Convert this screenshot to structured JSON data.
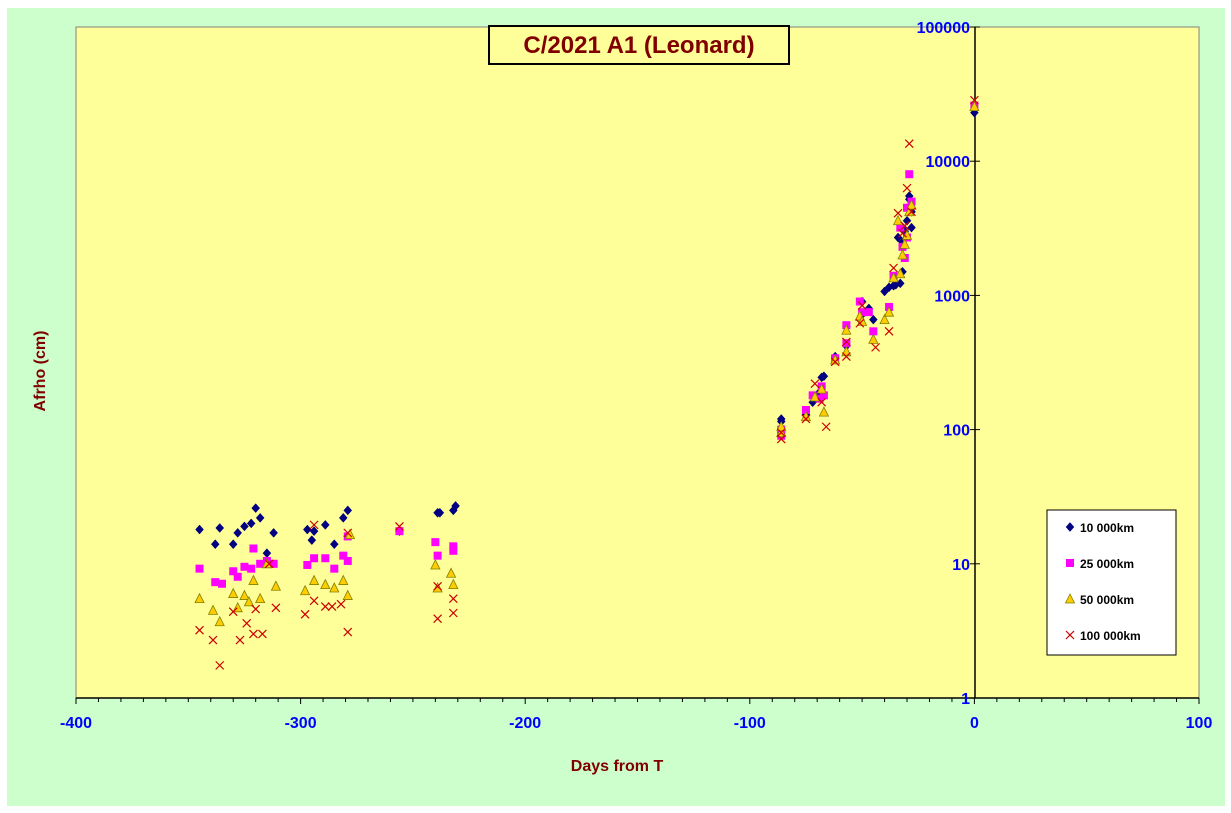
{
  "chart_data": {
    "type": "scatter",
    "title": "C/2021 A1 (Leonard)",
    "xlabel": "Days from T",
    "ylabel": "Afrho (cm)",
    "xlim": [
      -400,
      100
    ],
    "ylim": [
      1,
      100000
    ],
    "y_scale": "log",
    "x_ticks": [
      "-400",
      "-300",
      "-200",
      "-100",
      "0",
      "100"
    ],
    "y_ticks": [
      "1",
      "10",
      "100",
      "1000",
      "10000",
      "100000"
    ],
    "grid": false,
    "legend_position": "right",
    "colors": {
      "frame_bg": "#ccffcc",
      "plot_bg": "#ffff99",
      "tick_labels": "#0000ff",
      "axis_labels": "#800000",
      "title": "#800000"
    },
    "series": [
      {
        "name": "10 000km",
        "marker": "diamond",
        "color": "#000080",
        "points": [
          [
            -345,
            18
          ],
          [
            -338,
            14
          ],
          [
            -336,
            18.5
          ],
          [
            -330,
            14
          ],
          [
            -328,
            17
          ],
          [
            -325,
            19
          ],
          [
            -322,
            20
          ],
          [
            -320,
            26
          ],
          [
            -318,
            22
          ],
          [
            -315,
            12
          ],
          [
            -312,
            17
          ],
          [
            -297,
            18
          ],
          [
            -295,
            15
          ],
          [
            -294,
            17.5
          ],
          [
            -289,
            19.5
          ],
          [
            -285,
            14
          ],
          [
            -281,
            22
          ],
          [
            -279,
            25
          ],
          [
            -256,
            17.5
          ],
          [
            -239,
            24
          ],
          [
            -238,
            24
          ],
          [
            -232,
            25
          ],
          [
            -231,
            27
          ],
          [
            -86,
            115
          ],
          [
            -86,
            120
          ],
          [
            -86,
            95
          ],
          [
            -75,
            130
          ],
          [
            -72,
            160
          ],
          [
            -69,
            190
          ],
          [
            -68,
            245
          ],
          [
            -67,
            250
          ],
          [
            -62,
            350
          ],
          [
            -57,
            420
          ],
          [
            -57,
            590
          ],
          [
            -50,
            720
          ],
          [
            -50,
            900
          ],
          [
            -47,
            800
          ],
          [
            -45,
            660
          ],
          [
            -40,
            1070
          ],
          [
            -38,
            1150
          ],
          [
            -36,
            1180
          ],
          [
            -35,
            1200
          ],
          [
            -34,
            2700
          ],
          [
            -33,
            1230
          ],
          [
            -32,
            1500
          ],
          [
            -32,
            2500
          ],
          [
            -31,
            3000
          ],
          [
            -30,
            3600
          ],
          [
            -29,
            5200
          ],
          [
            -29,
            5500
          ],
          [
            -28,
            3200
          ],
          [
            -28,
            4200
          ],
          [
            0,
            23000
          ]
        ]
      },
      {
        "name": "25 000km",
        "marker": "square",
        "color": "#ff00ff",
        "points": [
          [
            -345,
            9.2
          ],
          [
            -338,
            7.3
          ],
          [
            -335,
            7.1
          ],
          [
            -330,
            8.8
          ],
          [
            -328,
            8.0
          ],
          [
            -325,
            9.5
          ],
          [
            -322,
            9.2
          ],
          [
            -321,
            13
          ],
          [
            -318,
            10
          ],
          [
            -315,
            10.5
          ],
          [
            -312,
            10
          ],
          [
            -297,
            9.8
          ],
          [
            -294,
            11
          ],
          [
            -289,
            11
          ],
          [
            -285,
            9.2
          ],
          [
            -281,
            11.5
          ],
          [
            -279,
            10.5
          ],
          [
            -279,
            16
          ],
          [
            -256,
            17.5
          ],
          [
            -240,
            14.5
          ],
          [
            -239,
            11.5
          ],
          [
            -232,
            12.5
          ],
          [
            -232,
            13.5
          ],
          [
            -86,
            100
          ],
          [
            -86,
            90
          ],
          [
            -75,
            140
          ],
          [
            -72,
            180
          ],
          [
            -69,
            170
          ],
          [
            -68,
            210
          ],
          [
            -67,
            180
          ],
          [
            -62,
            340
          ],
          [
            -57,
            440
          ],
          [
            -57,
            600
          ],
          [
            -51,
            900
          ],
          [
            -50,
            750
          ],
          [
            -47,
            750
          ],
          [
            -45,
            540
          ],
          [
            -38,
            820
          ],
          [
            -36,
            1400
          ],
          [
            -33,
            3200
          ],
          [
            -32,
            2300
          ],
          [
            -31,
            1900
          ],
          [
            -30,
            2700
          ],
          [
            -30,
            4500
          ],
          [
            -29,
            8000
          ],
          [
            -28,
            5000
          ],
          [
            0,
            26000
          ]
        ]
      },
      {
        "name": "50 000km",
        "marker": "triangle",
        "color": "#ffcc00",
        "points": [
          [
            -345,
            5.5
          ],
          [
            -339,
            4.5
          ],
          [
            -336,
            3.7
          ],
          [
            -330,
            6.0
          ],
          [
            -328,
            4.7
          ],
          [
            -325,
            5.8
          ],
          [
            -323,
            5.2
          ],
          [
            -321,
            7.5
          ],
          [
            -318,
            5.5
          ],
          [
            -315,
            10
          ],
          [
            -311,
            6.8
          ],
          [
            -298,
            6.3
          ],
          [
            -294,
            7.5
          ],
          [
            -289,
            7.0
          ],
          [
            -285,
            6.6
          ],
          [
            -281,
            7.5
          ],
          [
            -279,
            5.8
          ],
          [
            -278,
            16.5
          ],
          [
            -240,
            9.8
          ],
          [
            -239,
            6.6
          ],
          [
            -233,
            8.5
          ],
          [
            -232,
            7.0
          ],
          [
            -86,
            95
          ],
          [
            -86,
            105
          ],
          [
            -75,
            125
          ],
          [
            -71,
            175
          ],
          [
            -68,
            200
          ],
          [
            -67,
            135
          ],
          [
            -62,
            330
          ],
          [
            -57,
            380
          ],
          [
            -57,
            550
          ],
          [
            -51,
            700
          ],
          [
            -50,
            640
          ],
          [
            -45,
            470
          ],
          [
            -40,
            660
          ],
          [
            -38,
            750
          ],
          [
            -36,
            1350
          ],
          [
            -34,
            3600
          ],
          [
            -33,
            1450
          ],
          [
            -32,
            2000
          ],
          [
            -31,
            2400
          ],
          [
            -30,
            2800
          ],
          [
            -29,
            4200
          ],
          [
            -28,
            4700
          ],
          [
            0,
            25500
          ]
        ]
      },
      {
        "name": "100 000km",
        "marker": "x",
        "color": "#cc0000",
        "points": [
          [
            -345,
            3.2
          ],
          [
            -339,
            2.7
          ],
          [
            -336,
            1.75
          ],
          [
            -330,
            4.4
          ],
          [
            -327,
            2.7
          ],
          [
            -324,
            3.6
          ],
          [
            -321,
            3.0
          ],
          [
            -320,
            4.6
          ],
          [
            -317,
            3.0
          ],
          [
            -314,
            10
          ],
          [
            -311,
            4.7
          ],
          [
            -298,
            4.2
          ],
          [
            -294,
            5.3
          ],
          [
            -294,
            19.5
          ],
          [
            -289,
            4.8
          ],
          [
            -286,
            4.8
          ],
          [
            -282,
            5.0
          ],
          [
            -279,
            3.1
          ],
          [
            -279,
            17
          ],
          [
            -256,
            19
          ],
          [
            -239,
            3.9
          ],
          [
            -239,
            6.8
          ],
          [
            -232,
            5.5
          ],
          [
            -232,
            4.3
          ],
          [
            -86,
            85
          ],
          [
            -86,
            95
          ],
          [
            -75,
            120
          ],
          [
            -71,
            220
          ],
          [
            -68,
            160
          ],
          [
            -66,
            105
          ],
          [
            -62,
            320
          ],
          [
            -57,
            350
          ],
          [
            -57,
            450
          ],
          [
            -51,
            620
          ],
          [
            -50,
            840
          ],
          [
            -44,
            410
          ],
          [
            -38,
            540
          ],
          [
            -36,
            1600
          ],
          [
            -34,
            4100
          ],
          [
            -32,
            2900
          ],
          [
            -31,
            3300
          ],
          [
            -30,
            6300
          ],
          [
            -29,
            13500
          ],
          [
            -28,
            4200
          ],
          [
            0,
            28500
          ]
        ]
      }
    ]
  }
}
